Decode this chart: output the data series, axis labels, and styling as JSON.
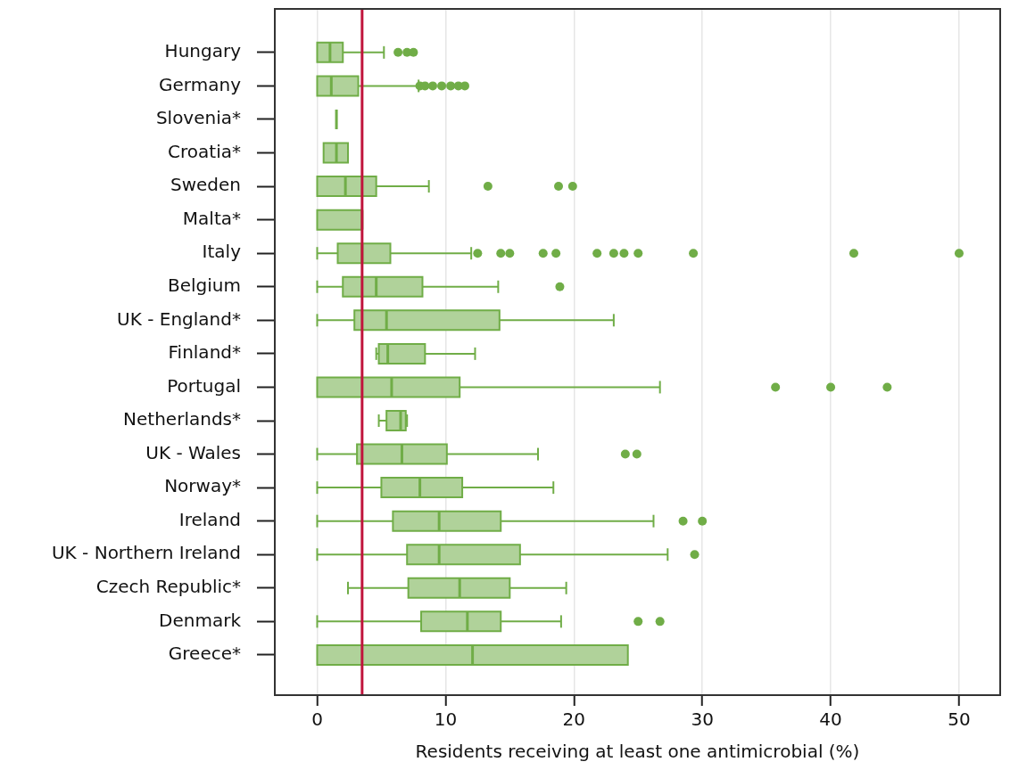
{
  "chart_data": {
    "type": "box",
    "orientation": "horizontal",
    "categories": [
      "Hungary",
      "Germany",
      "Slovenia*",
      "Croatia*",
      "Sweden",
      "Malta*",
      "Italy",
      "Belgium",
      "UK - England*",
      "Finland*",
      "Portugal",
      "Netherlands*",
      "UK - Wales",
      "Norway*",
      "Ireland",
      "UK - Northern Ireland",
      "Czech Republic*",
      "Denmark",
      "Greece*"
    ],
    "color": "#70ad47",
    "boxes": [
      {
        "low": 0,
        "q1": 0,
        "median": 1.0,
        "q3": 2.0,
        "high": 5.2,
        "outliers": [
          6.3,
          7.0,
          7.5
        ]
      },
      {
        "low": 0,
        "q1": 0,
        "median": 1.1,
        "q3": 3.2,
        "high": 7.9,
        "outliers": [
          8.0,
          8.4,
          9.0,
          9.7,
          10.4,
          11.0,
          11.5
        ]
      },
      {
        "low": 1.5,
        "q1": 1.5,
        "median": 1.5,
        "q3": 1.5,
        "high": 1.5
      },
      {
        "low": 0.5,
        "q1": 0.5,
        "median": 1.5,
        "q3": 2.4,
        "high": 2.4
      },
      {
        "low": 0,
        "q1": 0,
        "median": 2.2,
        "q3": 4.6,
        "high": 8.7,
        "outliers": [
          13.3,
          18.8,
          19.9
        ]
      },
      {
        "low": 0,
        "q1": 0,
        "median": 3.5,
        "q3": 3.5,
        "high": 3.5
      },
      {
        "low": 0,
        "q1": 1.6,
        "median": 3.5,
        "q3": 5.7,
        "high": 12.0,
        "outliers": [
          12.5,
          14.3,
          15.0,
          17.6,
          18.6,
          21.8,
          23.1,
          23.9,
          25.0,
          29.3,
          41.8,
          50.0
        ]
      },
      {
        "low": 0,
        "q1": 2.0,
        "median": 4.6,
        "q3": 8.2,
        "high": 14.1,
        "outliers": [
          18.9
        ]
      },
      {
        "low": 0,
        "q1": 2.9,
        "median": 5.4,
        "q3": 14.2,
        "high": 23.1
      },
      {
        "low": 4.6,
        "q1": 4.8,
        "median": 5.5,
        "q3": 8.4,
        "high": 12.3
      },
      {
        "low": 0,
        "q1": 0,
        "median": 5.8,
        "q3": 11.1,
        "high": 26.7,
        "outliers": [
          35.7,
          40.0,
          44.4
        ]
      },
      {
        "low": 4.8,
        "q1": 5.4,
        "median": 6.5,
        "q3": 6.9,
        "high": 7.0
      },
      {
        "low": 0,
        "q1": 3.1,
        "median": 6.6,
        "q3": 10.1,
        "high": 17.2,
        "outliers": [
          24.0,
          24.9
        ]
      },
      {
        "low": 0,
        "q1": 5.0,
        "median": 8.0,
        "q3": 11.3,
        "high": 18.4
      },
      {
        "low": 0,
        "q1": 5.9,
        "median": 9.5,
        "q3": 14.3,
        "high": 26.2,
        "outliers": [
          28.5,
          30.0
        ]
      },
      {
        "low": 0,
        "q1": 7.0,
        "median": 9.5,
        "q3": 15.8,
        "high": 27.3,
        "outliers": [
          29.4
        ]
      },
      {
        "low": 2.4,
        "q1": 7.1,
        "median": 11.1,
        "q3": 15.0,
        "high": 19.4
      },
      {
        "low": 0,
        "q1": 8.1,
        "median": 11.7,
        "q3": 14.3,
        "high": 19.0,
        "outliers": [
          25.0,
          26.7
        ]
      },
      {
        "low": 0,
        "q1": 0,
        "median": 12.1,
        "q3": 24.2,
        "high": 24.2
      }
    ],
    "xlim": [
      -3.3,
      53.2
    ],
    "xticks": [
      0,
      10,
      20,
      30,
      40,
      50
    ],
    "xlabel": "Residents receiving at least one antimicrobial (%)",
    "grid": "x",
    "ref_lines": [
      {
        "axis": "x",
        "value": 3.5,
        "color": "#c0143c"
      }
    ]
  }
}
